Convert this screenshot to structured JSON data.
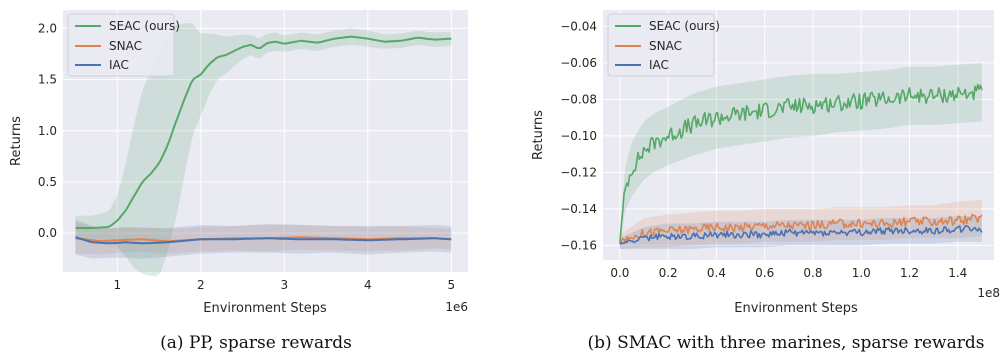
{
  "chart_data": [
    {
      "type": "line",
      "xlabel": "Environment Steps",
      "ylabel": "Returns",
      "x_multiplier": "1e6",
      "xlim": [
        0.35,
        5.2
      ],
      "ylim": [
        -0.38,
        2.18
      ],
      "xticks": [
        1,
        2,
        3,
        4,
        5
      ],
      "xtick_labels": [
        "1",
        "2",
        "3",
        "4",
        "5"
      ],
      "yticks": [
        0.0,
        0.5,
        1.0,
        1.5,
        2.0
      ],
      "ytick_labels": [
        "0.0",
        "0.5",
        "1.0",
        "1.5",
        "2.0"
      ],
      "grid": true,
      "legend_position": "top-left",
      "caption": "(a) PP, sparse rewards",
      "series": [
        {
          "name": "SEAC (ours)",
          "color": "#55a868",
          "x": [
            0.5,
            0.7,
            0.9,
            1.0,
            1.1,
            1.2,
            1.3,
            1.4,
            1.5,
            1.6,
            1.7,
            1.8,
            1.9,
            2.0,
            2.1,
            2.2,
            2.3,
            2.4,
            2.5,
            2.6,
            2.7,
            2.8,
            2.9,
            3.0,
            3.2,
            3.4,
            3.6,
            3.8,
            4.0,
            4.2,
            4.4,
            4.6,
            4.8,
            5.0
          ],
          "y": [
            0.05,
            0.05,
            0.06,
            0.12,
            0.22,
            0.36,
            0.5,
            0.58,
            0.68,
            0.85,
            1.08,
            1.3,
            1.5,
            1.55,
            1.65,
            1.72,
            1.74,
            1.78,
            1.82,
            1.84,
            1.8,
            1.86,
            1.87,
            1.85,
            1.88,
            1.86,
            1.9,
            1.92,
            1.9,
            1.87,
            1.88,
            1.91,
            1.89,
            1.9
          ],
          "band": [
            0.12,
            0.12,
            0.15,
            0.25,
            0.45,
            0.7,
            0.9,
            1.0,
            1.1,
            1.05,
            0.95,
            0.75,
            0.55,
            0.4,
            0.3,
            0.22,
            0.18,
            0.15,
            0.12,
            0.1,
            0.1,
            0.09,
            0.09,
            0.08,
            0.08,
            0.08,
            0.08,
            0.08,
            0.08,
            0.07,
            0.07,
            0.07,
            0.07,
            0.07
          ]
        },
        {
          "name": "SNAC",
          "color": "#dd8452",
          "x": [
            0.5,
            0.8,
            1.0,
            1.3,
            1.6,
            2.0,
            2.4,
            2.8,
            3.2,
            3.6,
            4.0,
            4.4,
            4.8,
            5.0
          ],
          "y": [
            -0.05,
            -0.08,
            -0.07,
            -0.06,
            -0.08,
            -0.06,
            -0.05,
            -0.05,
            -0.04,
            -0.05,
            -0.06,
            -0.05,
            -0.05,
            -0.06
          ],
          "band": [
            0.15,
            0.13,
            0.12,
            0.12,
            0.12,
            0.12,
            0.12,
            0.13,
            0.12,
            0.12,
            0.12,
            0.12,
            0.1,
            0.1
          ]
        },
        {
          "name": "IAC",
          "color": "#4c72b0",
          "x": [
            0.5,
            0.7,
            0.9,
            1.1,
            1.3,
            1.6,
            2.0,
            2.4,
            2.8,
            3.2,
            3.6,
            4.0,
            4.4,
            4.8,
            5.0
          ],
          "y": [
            -0.04,
            -0.09,
            -0.1,
            -0.09,
            -0.1,
            -0.09,
            -0.06,
            -0.06,
            -0.05,
            -0.06,
            -0.06,
            -0.07,
            -0.06,
            -0.05,
            -0.06
          ],
          "band": [
            0.17,
            0.16,
            0.14,
            0.15,
            0.15,
            0.14,
            0.14,
            0.13,
            0.14,
            0.14,
            0.13,
            0.14,
            0.13,
            0.13,
            0.13
          ]
        }
      ]
    },
    {
      "type": "line",
      "xlabel": "Environment Steps",
      "ylabel": "Returns",
      "x_multiplier": "1e8",
      "xlim": [
        -0.07,
        1.55
      ],
      "ylim": [
        -0.168,
        -0.031
      ],
      "xticks": [
        0.0,
        0.2,
        0.4,
        0.6,
        0.8,
        1.0,
        1.2,
        1.4
      ],
      "xtick_labels": [
        "0.0",
        "0.2",
        "0.4",
        "0.6",
        "0.8",
        "1.0",
        "1.2",
        "1.4"
      ],
      "yticks": [
        -0.16,
        -0.14,
        -0.12,
        -0.1,
        -0.08,
        -0.06,
        -0.04
      ],
      "ytick_labels": [
        "−0.16",
        "−0.14",
        "−0.12",
        "−0.10",
        "−0.08",
        "−0.06",
        "−0.04"
      ],
      "grid": true,
      "legend_position": "top-left",
      "caption": "(b) SMAC with three marines, sparse rewards",
      "series": [
        {
          "name": "SEAC (ours)",
          "color": "#55a868",
          "x": [
            0.0,
            0.02,
            0.05,
            0.1,
            0.15,
            0.2,
            0.3,
            0.4,
            0.5,
            0.6,
            0.7,
            0.8,
            0.9,
            1.0,
            1.1,
            1.2,
            1.3,
            1.4,
            1.5
          ],
          "y": [
            -0.158,
            -0.13,
            -0.118,
            -0.108,
            -0.103,
            -0.1,
            -0.094,
            -0.09,
            -0.088,
            -0.086,
            -0.084,
            -0.083,
            -0.082,
            -0.081,
            -0.08,
            -0.078,
            -0.078,
            -0.077,
            -0.076
          ],
          "band": [
            0.004,
            0.012,
            0.015,
            0.016,
            0.016,
            0.016,
            0.017,
            0.017,
            0.017,
            0.017,
            0.017,
            0.017,
            0.016,
            0.016,
            0.016,
            0.016,
            0.016,
            0.016,
            0.016
          ]
        },
        {
          "name": "SNAC",
          "color": "#dd8452",
          "x": [
            0.0,
            0.1,
            0.2,
            0.3,
            0.4,
            0.5,
            0.6,
            0.7,
            0.8,
            0.9,
            1.0,
            1.1,
            1.2,
            1.3,
            1.4,
            1.5
          ],
          "y": [
            -0.158,
            -0.153,
            -0.152,
            -0.151,
            -0.15,
            -0.15,
            -0.149,
            -0.149,
            -0.149,
            -0.148,
            -0.148,
            -0.148,
            -0.147,
            -0.147,
            -0.146,
            -0.145
          ],
          "band": [
            0.004,
            0.008,
            0.009,
            0.009,
            0.009,
            0.009,
            0.009,
            0.009,
            0.009,
            0.009,
            0.009,
            0.009,
            0.009,
            0.009,
            0.01,
            0.01
          ]
        },
        {
          "name": "IAC",
          "color": "#4c72b0",
          "x": [
            0.0,
            0.1,
            0.2,
            0.3,
            0.4,
            0.5,
            0.6,
            0.7,
            0.8,
            0.9,
            1.0,
            1.1,
            1.2,
            1.3,
            1.4,
            1.5
          ],
          "y": [
            -0.159,
            -0.156,
            -0.155,
            -0.155,
            -0.154,
            -0.154,
            -0.154,
            -0.153,
            -0.153,
            -0.153,
            -0.153,
            -0.152,
            -0.152,
            -0.152,
            -0.151,
            -0.151
          ],
          "band": [
            0.003,
            0.006,
            0.007,
            0.007,
            0.007,
            0.007,
            0.007,
            0.007,
            0.007,
            0.007,
            0.007,
            0.007,
            0.007,
            0.007,
            0.007,
            0.007
          ]
        }
      ]
    }
  ]
}
